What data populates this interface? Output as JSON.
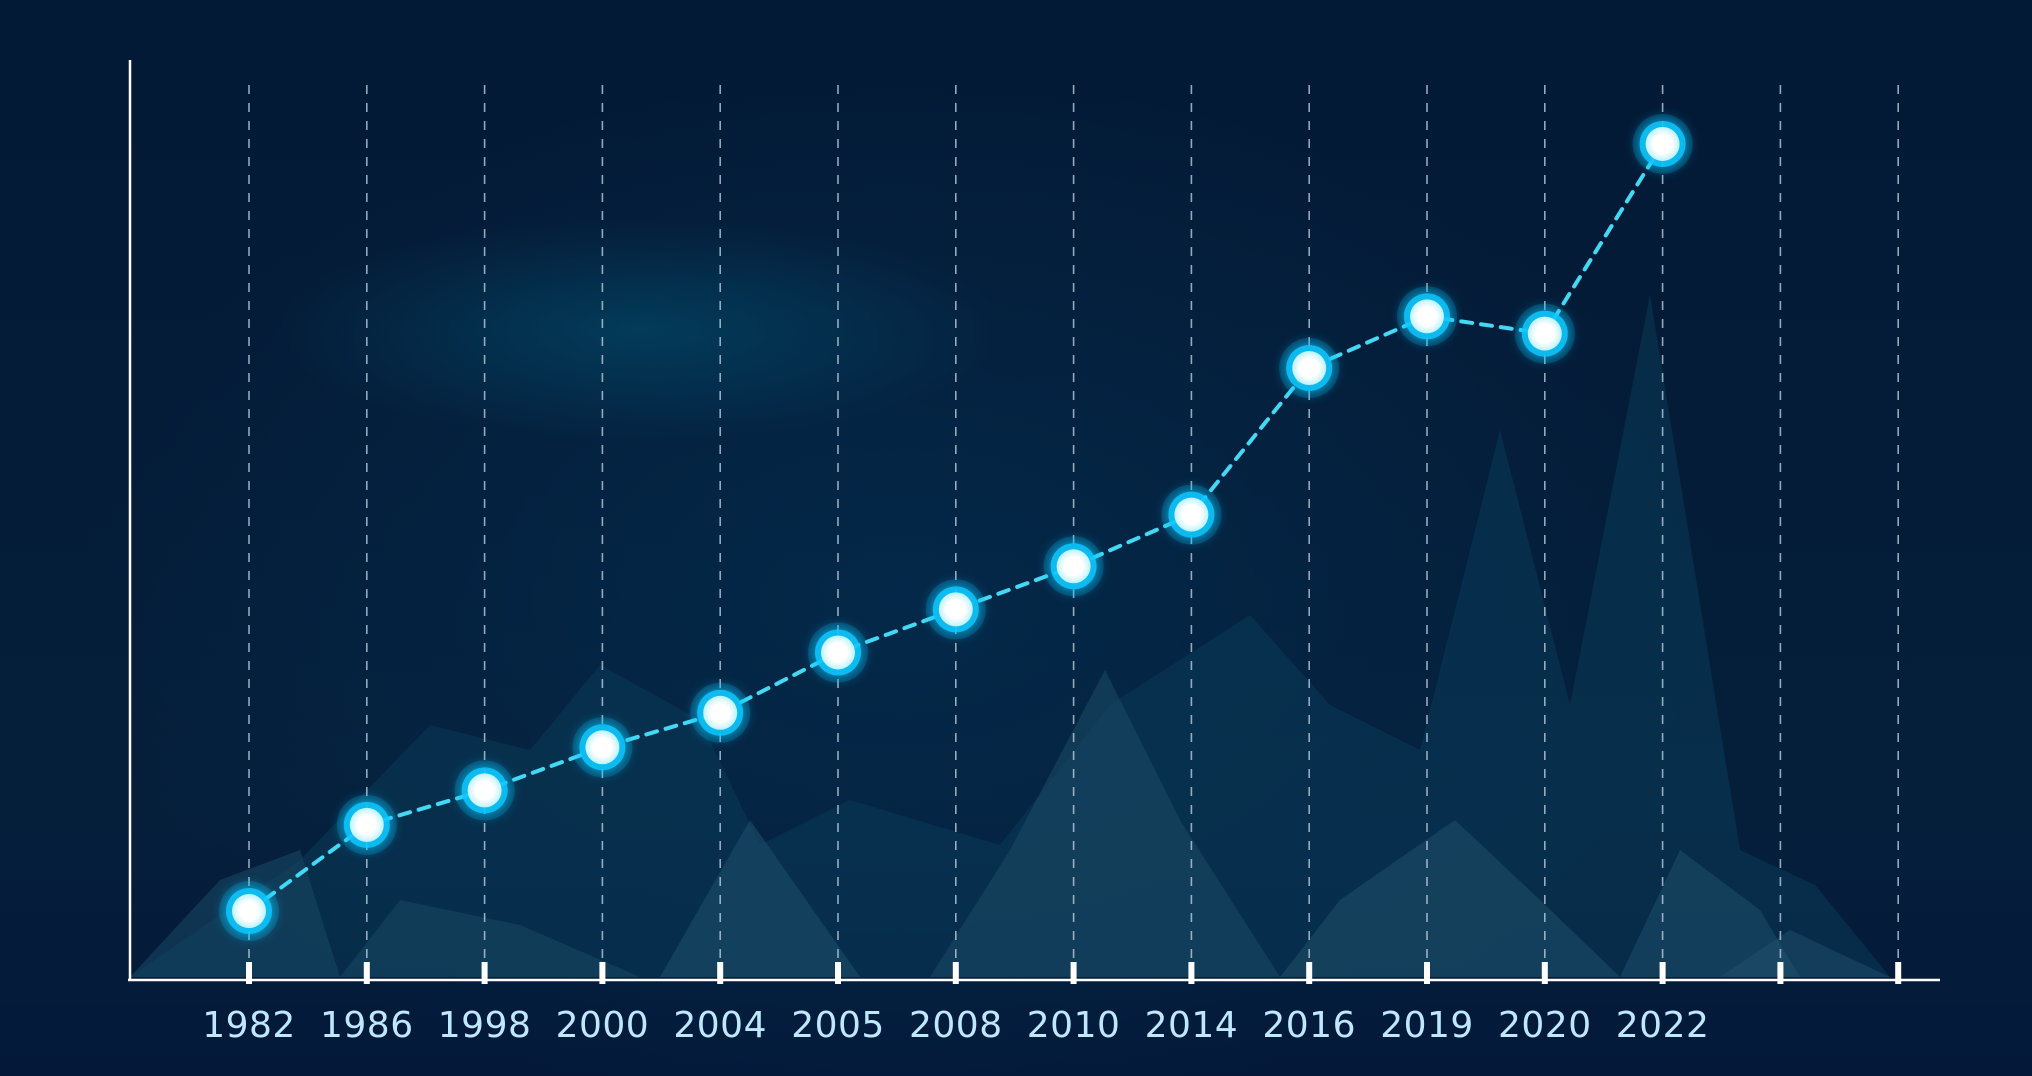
{
  "chart_data": {
    "type": "line",
    "categories": [
      "1982",
      "1986",
      "1998",
      "2000",
      "2004",
      "2005",
      "2008",
      "2010",
      "2014",
      "2016",
      "2019",
      "2020",
      "2022"
    ],
    "values": [
      8,
      18,
      22,
      27,
      31,
      38,
      43,
      48,
      54,
      71,
      77,
      75,
      97
    ],
    "ylim": [
      0,
      105
    ],
    "grid": true,
    "line_style": "dashed",
    "colors": {
      "line": "#43d9f5",
      "marker": "#ffffff",
      "marker_glow": "#10c8ff",
      "axis": "#ffffff",
      "grid": "#c7d6e6",
      "background": "#041c38"
    }
  }
}
